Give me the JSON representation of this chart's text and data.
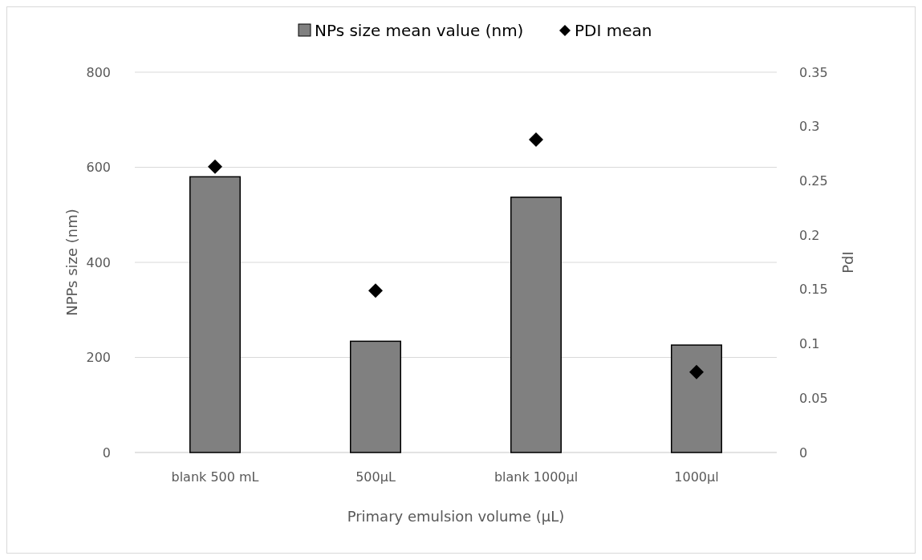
{
  "chart_data": {
    "type": "bar",
    "xlabel": "Primary emulsion volume (µL)",
    "ylabel": "NPPs size (nm)",
    "y2label": "PdI",
    "categories": [
      "blank 500 mL",
      "500µL",
      "blank 1000µl",
      "1000µl"
    ],
    "series": [
      {
        "name": "NPs size mean value (nm)",
        "color": "#808080",
        "values": [
          580,
          234,
          537,
          226
        ]
      },
      {
        "name": "PDI mean",
        "type": "scatter",
        "axis": "y2",
        "color": "#000000",
        "marker": "diamond",
        "values": [
          0.263,
          0.149,
          0.288,
          0.074
        ]
      }
    ],
    "ylim": [
      0,
      800
    ],
    "yticks": [
      0,
      200,
      400,
      600,
      800
    ],
    "y2lim": [
      0,
      0.35
    ],
    "y2ticks": [
      0,
      0.05,
      0.1,
      0.15,
      0.2,
      0.25,
      0.3,
      0.35
    ],
    "grid": "y",
    "legend": "top"
  }
}
